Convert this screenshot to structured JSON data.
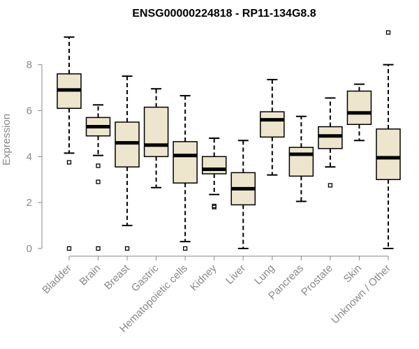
{
  "chart_data": {
    "type": "boxplot",
    "title": "ENSG00000224818 - RP11-134G8.8",
    "xlabel": "",
    "ylabel": "Expression",
    "ylim": [
      0,
      9.6
    ],
    "yticks": [
      0,
      2,
      4,
      6,
      8
    ],
    "grid": false,
    "legend": "none",
    "box_fill": "#ede6cd",
    "line_color": "#000000",
    "categories": [
      "Bladder",
      "Brain",
      "Breast",
      "Gastric",
      "Hematopoietic cells",
      "Kidney",
      "Liver",
      "Lung",
      "Pancreas",
      "Prostate",
      "Skin",
      "Unknown / Other"
    ],
    "boxes": [
      {
        "min": 4.15,
        "q1": 6.1,
        "median": 6.9,
        "q3": 7.6,
        "max": 9.2,
        "outliers": [
          3.75,
          0.0
        ]
      },
      {
        "min": 4.05,
        "q1": 4.9,
        "median": 5.3,
        "q3": 5.7,
        "max": 6.25,
        "outliers": [
          3.6,
          2.9,
          0.0
        ]
      },
      {
        "min": 1.0,
        "q1": 3.55,
        "median": 4.6,
        "q3": 5.5,
        "max": 7.5,
        "outliers": [
          0.0
        ]
      },
      {
        "min": 2.65,
        "q1": 4.0,
        "median": 4.5,
        "q3": 6.15,
        "max": 6.95,
        "outliers": []
      },
      {
        "min": 0.3,
        "q1": 2.85,
        "median": 4.05,
        "q3": 4.65,
        "max": 6.65,
        "outliers": [
          0.0
        ]
      },
      {
        "min": 2.35,
        "q1": 3.25,
        "median": 3.45,
        "q3": 4.0,
        "max": 4.8,
        "outliers": [
          1.85,
          1.8
        ]
      },
      {
        "min": 0.0,
        "q1": 1.9,
        "median": 2.6,
        "q3": 3.3,
        "max": 4.7,
        "outliers": []
      },
      {
        "min": 3.2,
        "q1": 4.85,
        "median": 5.6,
        "q3": 5.95,
        "max": 7.35,
        "outliers": []
      },
      {
        "min": 2.05,
        "q1": 3.15,
        "median": 4.1,
        "q3": 4.4,
        "max": 5.75,
        "outliers": []
      },
      {
        "min": 3.55,
        "q1": 4.35,
        "median": 4.9,
        "q3": 5.3,
        "max": 6.55,
        "outliers": [
          2.75
        ]
      },
      {
        "min": 4.7,
        "q1": 5.4,
        "median": 5.9,
        "q3": 6.85,
        "max": 7.15,
        "outliers": []
      },
      {
        "min": 0.0,
        "q1": 3.0,
        "median": 3.95,
        "q3": 5.2,
        "max": 8.0,
        "outliers": [
          9.4
        ]
      }
    ]
  }
}
